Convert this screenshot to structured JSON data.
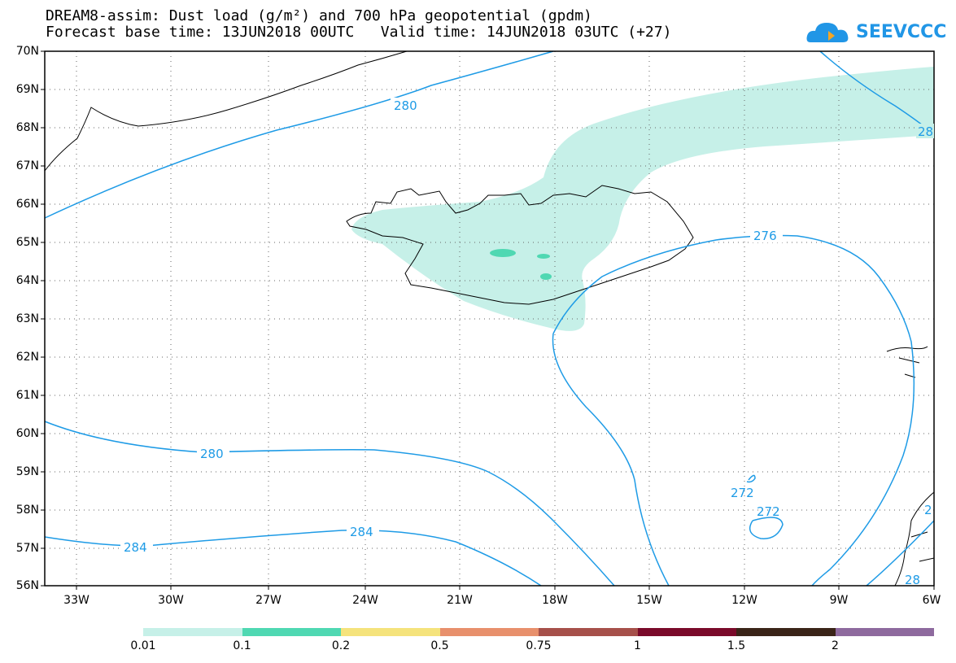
{
  "header": {
    "line1": "DREAM8-assim: Dust load (g/m²) and 700 hPa geopotential (gpdm)",
    "line2": "Forecast base time: 13JUN2018 00UTC   Valid time: 14JUN2018 03UTC (+27)"
  },
  "logo": {
    "text": "SEEVCCC",
    "icon": "cloud-icon",
    "color": "#2196e6"
  },
  "axes": {
    "lat_labels": [
      "70N",
      "69N",
      "68N",
      "67N",
      "66N",
      "65N",
      "64N",
      "63N",
      "62N",
      "61N",
      "60N",
      "59N",
      "58N",
      "57N",
      "56N"
    ],
    "lon_labels": [
      "33W",
      "30W",
      "27W",
      "24W",
      "21W",
      "18W",
      "15W",
      "12W",
      "9W",
      "6W"
    ]
  },
  "contour_labels": {
    "c280_north": "280",
    "c280_ne": "28",
    "c276": "276",
    "c280_south": "280",
    "c284_left": "284",
    "c284_mid": "284",
    "c272_a": "272",
    "c272_b": "272",
    "c28_se1": "2",
    "c28_se2": "28"
  },
  "colorbar": {
    "colors": [
      "#c6f0e8",
      "#4fd8b2",
      "#f5e37c",
      "#e8906c",
      "#a6504a",
      "#7a0a2a",
      "#3a2418",
      "#8e6a9e"
    ],
    "labels": [
      "0.01",
      "0.1",
      "0.2",
      "0.5",
      "0.75",
      "1",
      "1.5",
      "2"
    ]
  },
  "colors": {
    "contour": "#1e9be6",
    "coast": "#000000",
    "dust_low": "#c6f0e8",
    "dust_mid": "#4fd8b2"
  }
}
